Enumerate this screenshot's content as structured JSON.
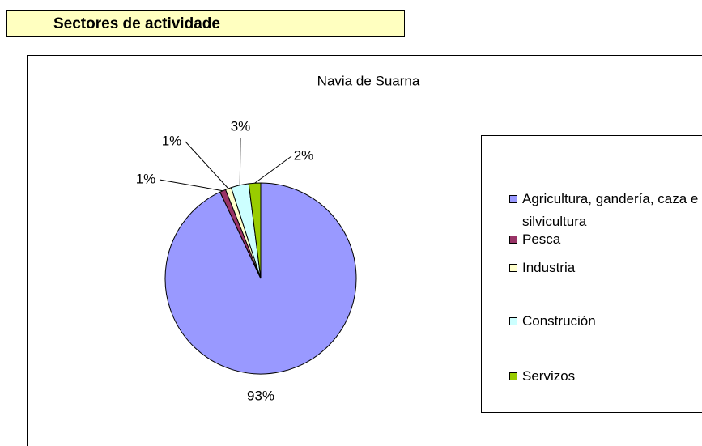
{
  "header": {
    "title": "Sectores de actividade"
  },
  "chart_data": {
    "type": "pie",
    "title": "Navia de Suarna",
    "categories": [
      "Agricultura, gandería, caza e silvicultura",
      "Pesca",
      "Industria",
      "Construción",
      "Servizos"
    ],
    "values": [
      93,
      1,
      1,
      3,
      2
    ],
    "value_labels": [
      "93%",
      "1%",
      "1%",
      "3%",
      "2%"
    ],
    "colors": [
      "#9999ff",
      "#993366",
      "#ffffcc",
      "#ccffff",
      "#99cc00"
    ],
    "legend": "right"
  }
}
